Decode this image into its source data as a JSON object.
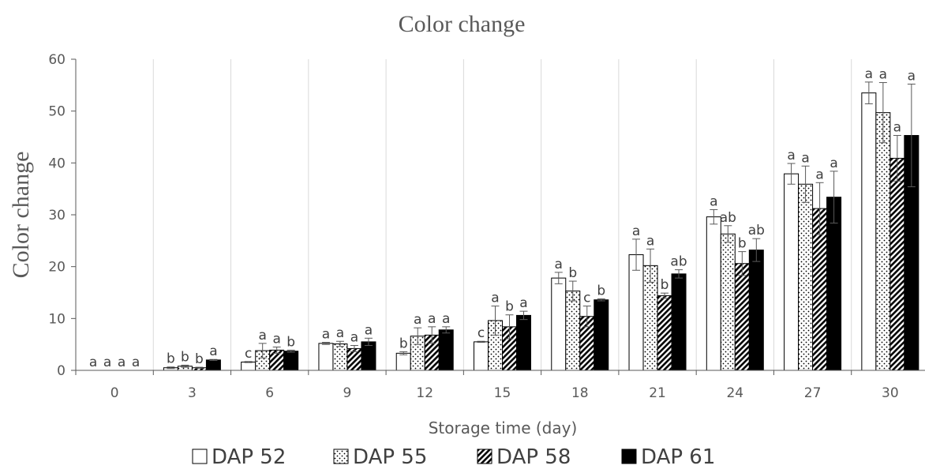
{
  "chart_data": {
    "type": "bar",
    "title": "Color change",
    "xlabel": "Storage time (day)",
    "ylabel": "Color change",
    "ylim": [
      0,
      60
    ],
    "yticks": [
      0,
      10,
      20,
      30,
      40,
      50,
      60
    ],
    "grid": "vertical",
    "legend_position": "bottom",
    "categories": [
      "0",
      "3",
      "6",
      "9",
      "12",
      "15",
      "18",
      "21",
      "24",
      "27",
      "30"
    ],
    "series": [
      {
        "name": "DAP 52",
        "pattern": "white",
        "values": [
          0,
          0.5,
          1.6,
          5.2,
          3.3,
          5.5,
          17.8,
          22.3,
          29.6,
          37.9,
          53.5
        ],
        "errors": [
          0,
          0.15,
          0.1,
          0.2,
          0.3,
          0.1,
          1.1,
          3.0,
          1.4,
          2.0,
          2.1
        ],
        "letters": [
          "a",
          "b",
          "c",
          "a",
          "b",
          "c",
          "a",
          "a",
          "a",
          "a",
          "a"
        ]
      },
      {
        "name": "DAP 55",
        "pattern": "dots",
        "values": [
          0,
          0.8,
          3.8,
          5.1,
          6.6,
          9.6,
          15.3,
          20.2,
          26.3,
          35.9,
          49.7
        ],
        "errors": [
          0,
          0.2,
          1.4,
          0.5,
          1.6,
          2.8,
          1.9,
          3.2,
          1.6,
          3.5,
          5.8
        ],
        "letters": [
          "a",
          "b",
          "a",
          "a",
          "a",
          "a",
          "b",
          "a",
          "ab",
          "a",
          "a"
        ]
      },
      {
        "name": "DAP 58",
        "pattern": "hatch",
        "values": [
          0,
          0.5,
          3.9,
          4.2,
          6.8,
          8.4,
          10.4,
          14.4,
          20.6,
          31.2,
          40.9
        ],
        "errors": [
          0,
          0.1,
          0.6,
          0.6,
          1.6,
          2.3,
          2.0,
          0.5,
          2.3,
          5.0,
          4.4
        ],
        "letters": [
          "a",
          "b",
          "a",
          "a",
          "a",
          "b",
          "c",
          "b",
          "b",
          "a",
          "a"
        ]
      },
      {
        "name": "DAP 61",
        "pattern": "black",
        "values": [
          0,
          2.0,
          3.7,
          5.5,
          7.8,
          10.6,
          13.6,
          18.6,
          23.2,
          33.4,
          45.3
        ],
        "errors": [
          0,
          0.1,
          0.2,
          0.7,
          0.6,
          0.8,
          0.2,
          0.8,
          2.2,
          5.0,
          9.9
        ],
        "letters": [
          "a",
          "a",
          "b",
          "a",
          "a",
          "a",
          "b",
          "ab",
          "ab",
          "a",
          "a"
        ]
      }
    ]
  },
  "colors": {
    "axis_text": "#595959",
    "gridline": "#d9d9d9",
    "bar_border": "#000000",
    "fill_black": "#000000",
    "fill_white": "#ffffff",
    "error_bar": "#595959"
  }
}
